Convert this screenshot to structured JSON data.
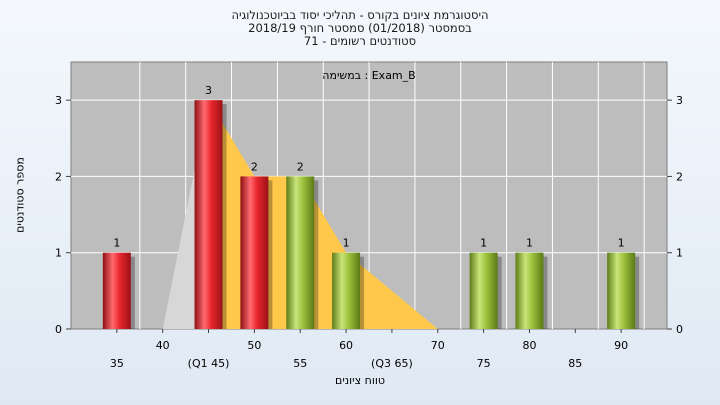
{
  "header": {
    "title_line1": "היסטוגרמת ציונים בקורס - תהליכי יסוד בביוטכנולוגיה",
    "title_line2": "בסמסטר  (01/2018)  סמסטר חורף 2018/19",
    "title_line3": "סטודנטים רשומים - 71"
  },
  "chart_data": {
    "type": "bar",
    "annotation": "במשימה : Exam_B",
    "ylabel": "מספר סטודנטים",
    "xlabel": "טווח ציונים",
    "ylim": [
      0,
      3.5
    ],
    "yticks": [
      0,
      1,
      2,
      3
    ],
    "xlim": [
      30,
      95
    ],
    "x_ticks": [
      {
        "x": 35,
        "label": "35"
      },
      {
        "x": 40,
        "label": "40"
      },
      {
        "x": 45,
        "label": "(Q1 45)"
      },
      {
        "x": 50,
        "label": "50"
      },
      {
        "x": 55,
        "label": "55"
      },
      {
        "x": 60,
        "label": "60"
      },
      {
        "x": 65,
        "label": "(Q3 65)"
      },
      {
        "x": 70,
        "label": "70"
      },
      {
        "x": 75,
        "label": "75"
      },
      {
        "x": 80,
        "label": "80"
      },
      {
        "x": 85,
        "label": "85"
      },
      {
        "x": 90,
        "label": "90"
      }
    ],
    "bars": [
      {
        "x": 35,
        "value": 1,
        "color": "red"
      },
      {
        "x": 45,
        "value": 3,
        "color": "red"
      },
      {
        "x": 50,
        "value": 2,
        "color": "red"
      },
      {
        "x": 55,
        "value": 2,
        "color": "green"
      },
      {
        "x": 60,
        "value": 1,
        "color": "green"
      },
      {
        "x": 75,
        "value": 1,
        "color": "green"
      },
      {
        "x": 80,
        "value": 1,
        "color": "green"
      },
      {
        "x": 90,
        "value": 1,
        "color": "green"
      }
    ],
    "distribution_area": {
      "x": [
        40,
        45,
        50,
        55,
        60,
        65,
        70
      ],
      "y": [
        0,
        3,
        2,
        2,
        1,
        0.5,
        0
      ]
    },
    "colors": {
      "plot_bg": "#bdbdbd",
      "grid": "#ffffff",
      "red_bar": "#e8252d",
      "green_bar": "#9cc03c",
      "area": "#ffc84a",
      "area_left": "#d7d7d7"
    }
  }
}
